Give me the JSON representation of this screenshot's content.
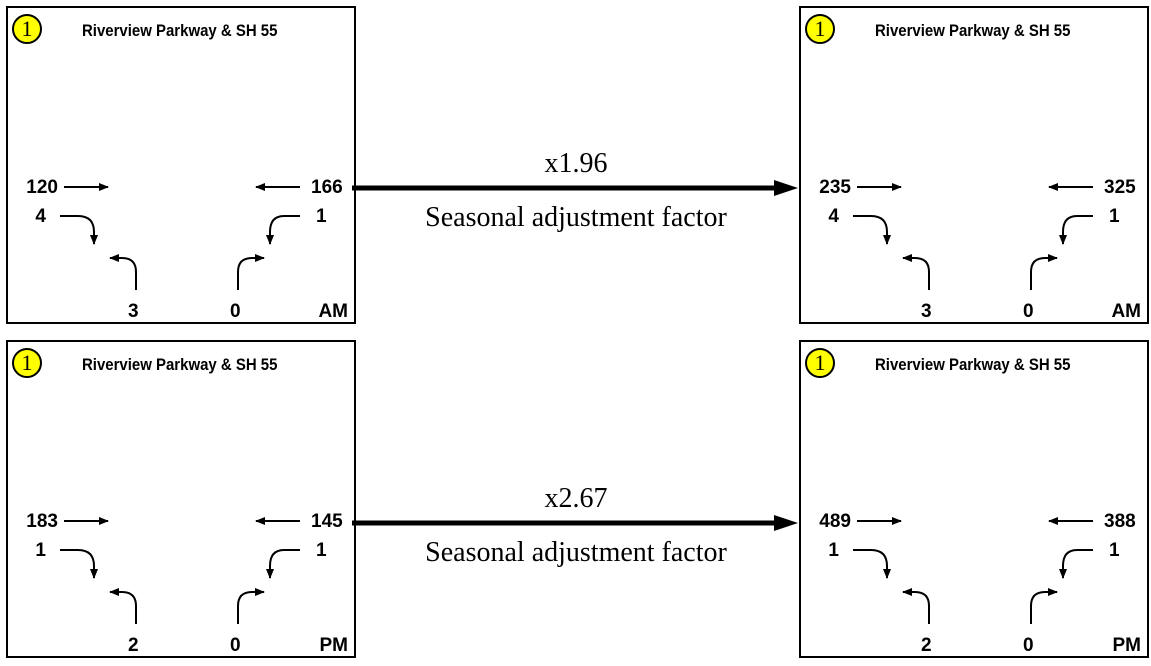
{
  "panels": [
    {
      "badge": "1",
      "title": "Riverview Parkway & SH 55",
      "eb_through": "120",
      "eb_right": "4",
      "wb_through": "166",
      "wb_left": "1",
      "nb_left": "3",
      "nb_right": "0",
      "period": "AM"
    },
    {
      "badge": "1",
      "title": "Riverview Parkway & SH 55",
      "eb_through": "235",
      "eb_right": "4",
      "wb_through": "325",
      "wb_left": "1",
      "nb_left": "3",
      "nb_right": "0",
      "period": "AM"
    },
    {
      "badge": "1",
      "title": "Riverview Parkway & SH 55",
      "eb_through": "183",
      "eb_right": "1",
      "wb_through": "145",
      "wb_left": "1",
      "nb_left": "2",
      "nb_right": "0",
      "period": "PM"
    },
    {
      "badge": "1",
      "title": "Riverview Parkway & SH 55",
      "eb_through": "489",
      "eb_right": "1",
      "wb_through": "388",
      "wb_left": "1",
      "nb_left": "2",
      "nb_right": "0",
      "period": "PM"
    }
  ],
  "connectors": [
    {
      "factor": "x1.96",
      "label": "Seasonal adjustment factor"
    },
    {
      "factor": "x2.67",
      "label": "Seasonal adjustment factor"
    }
  ],
  "colors": {
    "badge_fill": "#FFFF00",
    "line": "#000000"
  }
}
